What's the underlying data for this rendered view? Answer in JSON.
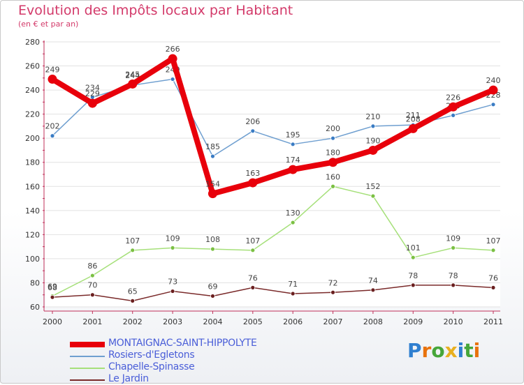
{
  "chart_data": {
    "type": "line",
    "title": "Evolution des Impôts locaux par Habitant",
    "subtitle": "(en € et par an)",
    "xlabel": "",
    "ylabel": "",
    "ylim": [
      60,
      280
    ],
    "yticks": [
      60,
      80,
      100,
      120,
      140,
      160,
      180,
      200,
      220,
      240,
      260,
      280
    ],
    "grid": true,
    "categories": [
      "2000",
      "2001",
      "2002",
      "2003",
      "2004",
      "2005",
      "2006",
      "2007",
      "2008",
      "2009",
      "2010",
      "2011"
    ],
    "series": [
      {
        "name": "MONTAIGNAC-SAINT-HIPPOLYTE",
        "color": "#e8000b",
        "style": "thick",
        "values": [
          249,
          229,
          245,
          266,
          154,
          163,
          174,
          180,
          190,
          208,
          226,
          240
        ]
      },
      {
        "name": "Rosiers-d'Egletons",
        "color": "#6f9fd0",
        "marker": "#3a7cc4",
        "style": "thin",
        "values": [
          202,
          234,
          244,
          249,
          185,
          206,
          195,
          200,
          210,
          211,
          219,
          228
        ]
      },
      {
        "name": "Chapelle-Spinasse",
        "color": "#a6e07a",
        "marker": "#7bc043",
        "style": "thin",
        "values": [
          69,
          86,
          107,
          109,
          108,
          107,
          130,
          160,
          152,
          101,
          109,
          107
        ]
      },
      {
        "name": "Le Jardin",
        "color": "#7a2a2a",
        "marker": "#6a1f1f",
        "style": "thin",
        "values": [
          68,
          70,
          65,
          73,
          69,
          76,
          71,
          72,
          74,
          78,
          78,
          76
        ]
      }
    ]
  },
  "logo": {
    "letters": [
      "P",
      "r",
      "o",
      "x",
      "i",
      "t",
      "i"
    ],
    "colors": [
      "#2f7fd0",
      "#e8720c",
      "#46a63a",
      "#e8b020",
      "#2f7fd0",
      "#46a63a",
      "#e8720c"
    ]
  }
}
